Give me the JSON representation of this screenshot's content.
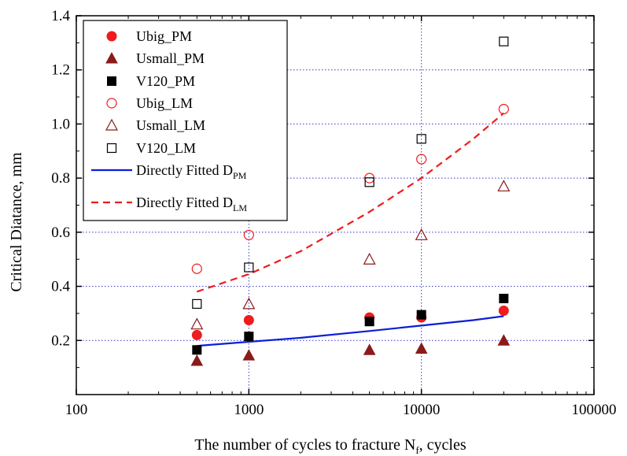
{
  "chart_data": {
    "type": "scatter",
    "title": "",
    "xlabel": "The number of cycles to fracture N",
    "xlabel_sub": "f",
    "xlabel_suffix": ", cycles",
    "ylabel": "Critical Diatance, mm",
    "xscale": "log",
    "xlim": [
      100,
      100000
    ],
    "ylim": [
      0.0,
      1.4
    ],
    "x_ticks": [
      100,
      1000,
      10000,
      100000
    ],
    "x_tick_labels": [
      "100",
      "1000",
      "10000",
      "100000"
    ],
    "y_ticks": [
      0.2,
      0.4,
      0.6,
      0.8,
      1.0,
      1.2,
      1.4
    ],
    "y_tick_labels": [
      "0.2",
      "0.4",
      "0.6",
      "0.8",
      "1.0",
      "1.2",
      "1.4"
    ],
    "grid": true,
    "legend_position": "top-left",
    "series": [
      {
        "name": "Ubig_PM",
        "marker": "circle",
        "filled": true,
        "color": "#ee1c1c",
        "x": [
          500,
          1000,
          5000,
          10000,
          30000
        ],
        "y": [
          0.22,
          0.275,
          0.285,
          0.285,
          0.31
        ]
      },
      {
        "name": "Usmall_PM",
        "marker": "triangle",
        "filled": true,
        "color": "#8b1a1a",
        "x": [
          500,
          1000,
          5000,
          10000,
          30000
        ],
        "y": [
          0.125,
          0.145,
          0.165,
          0.17,
          0.2
        ]
      },
      {
        "name": "V120_PM",
        "marker": "square",
        "filled": true,
        "color": "#000000",
        "x": [
          500,
          1000,
          5000,
          10000,
          30000
        ],
        "y": [
          0.165,
          0.215,
          0.27,
          0.295,
          0.355
        ]
      },
      {
        "name": "Ubig_LM",
        "marker": "circle",
        "filled": false,
        "color": "#ee1c1c",
        "x": [
          500,
          1000,
          5000,
          10000,
          30000
        ],
        "y": [
          0.465,
          0.59,
          0.8,
          0.87,
          1.055
        ]
      },
      {
        "name": "Usmall_LM",
        "marker": "triangle",
        "filled": false,
        "color": "#8b1a1a",
        "x": [
          500,
          1000,
          5000,
          10000,
          30000
        ],
        "y": [
          0.26,
          0.335,
          0.5,
          0.59,
          0.77
        ]
      },
      {
        "name": "V120_LM",
        "marker": "square",
        "filled": false,
        "color": "#000000",
        "x": [
          500,
          1000,
          5000,
          10000,
          30000
        ],
        "y": [
          0.335,
          0.47,
          0.785,
          0.945,
          1.305
        ]
      }
    ],
    "fits": [
      {
        "name": "Directly Fitted D",
        "name_sub": "PM",
        "style": "solid",
        "color": "#0a1fd6",
        "x": [
          500,
          1000,
          2000,
          5000,
          10000,
          20000,
          30000
        ],
        "y": [
          0.18,
          0.195,
          0.21,
          0.235,
          0.255,
          0.275,
          0.29
        ]
      },
      {
        "name": "Directly Fitted D",
        "name_sub": "LM",
        "style": "dashed",
        "color": "#ee1c1c",
        "x": [
          500,
          1000,
          2000,
          5000,
          10000,
          20000,
          30000
        ],
        "y": [
          0.38,
          0.445,
          0.53,
          0.675,
          0.8,
          0.945,
          1.04
        ]
      }
    ]
  }
}
